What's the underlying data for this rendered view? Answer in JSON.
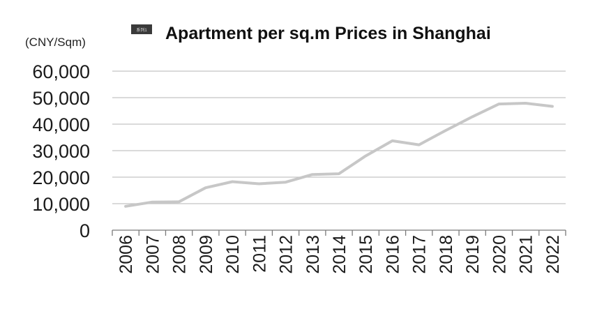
{
  "chart_data": {
    "type": "line",
    "title": "Apartment per sq.m Prices in Shanghai",
    "unit_label": "(CNY/Sqm)",
    "legend_marker_text": "系列1",
    "legend_position": "top-left of title",
    "grid": true,
    "ylim": [
      0,
      60000
    ],
    "yticks": [
      "0",
      "10,000",
      "20,000",
      "30,000",
      "40,000",
      "50,000",
      "60,000"
    ],
    "ytick_values": [
      0,
      10000,
      20000,
      30000,
      40000,
      50000,
      60000
    ],
    "categories": [
      "2006",
      "2007",
      "2008",
      "2009",
      "2010",
      "2011",
      "2012",
      "2013",
      "2014",
      "2015",
      "2016",
      "2017",
      "2018",
      "2019",
      "2020",
      "2021",
      "2022"
    ],
    "series": [
      {
        "color": "#c7c7c7",
        "values": [
          9000,
          10600,
          10700,
          16000,
          18300,
          17500,
          18100,
          21000,
          21300,
          28000,
          33700,
          32200,
          37600,
          42800,
          47600,
          47900,
          46700
        ]
      }
    ]
  }
}
